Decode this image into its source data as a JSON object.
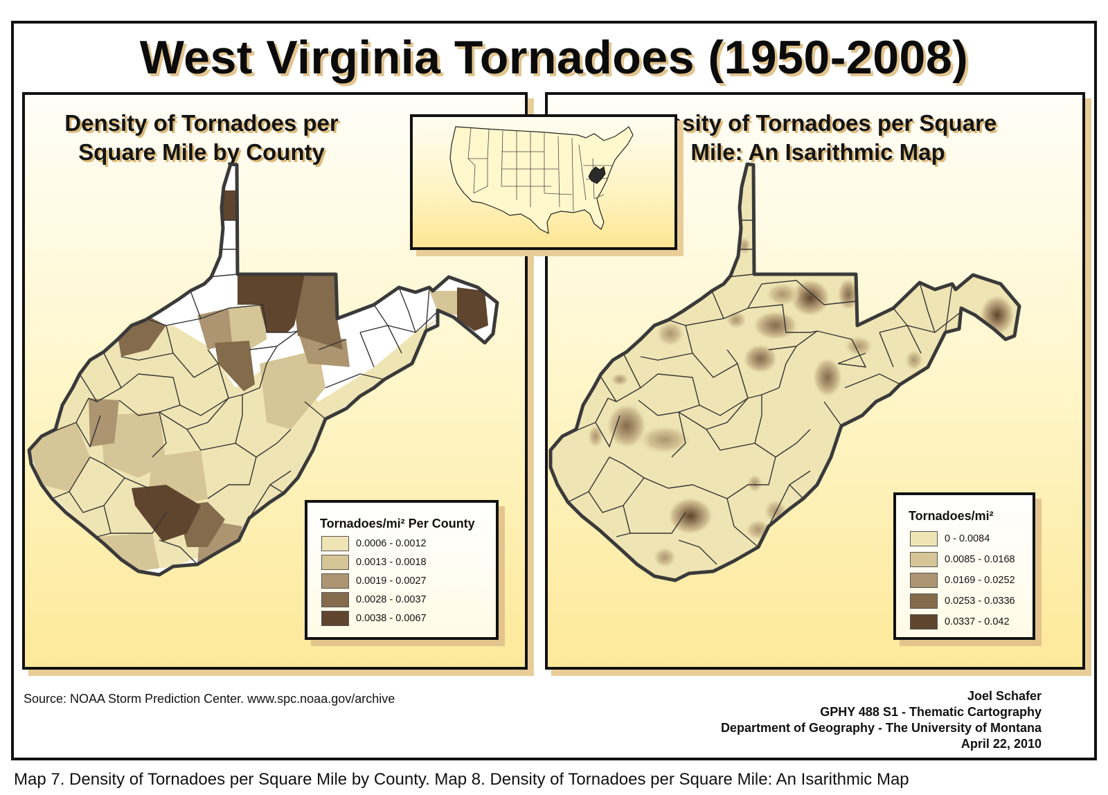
{
  "title": "West Virginia Tornadoes (1950-2008)",
  "left_map": {
    "title_line1": "Density of Tornadoes per",
    "title_line2": "Square Mile by County",
    "legend_title": "Tornadoes/mi² Per County",
    "classes": [
      {
        "label": "0.0006 - 0.0012",
        "color": "#efe5b4"
      },
      {
        "label": "0.0013 - 0.0018",
        "color": "#d6c596"
      },
      {
        "label": "0.0019 - 0.0027",
        "color": "#ad9571"
      },
      {
        "label": "0.0028 - 0.0037",
        "color": "#846b4c"
      },
      {
        "label": "0.0038 - 0.0067",
        "color": "#5f452e"
      }
    ]
  },
  "right_map": {
    "title_line1": "Density of Tornadoes per Square",
    "title_line2": "Mile:  An Isarithmic Map",
    "legend_title": "Tornadoes/mi²",
    "classes": [
      {
        "label": "0 - 0.0084",
        "color": "#efe5b4"
      },
      {
        "label": "0.0085 - 0.0168",
        "color": "#d6c596"
      },
      {
        "label": "0.0169 - 0.0252",
        "color": "#ad9571"
      },
      {
        "label": "0.0253 - 0.0336",
        "color": "#846b4c"
      },
      {
        "label": "0.0337 - 0.042",
        "color": "#5f452e"
      }
    ]
  },
  "source": "Source:  NOAA Storm Prediction Center.  www.spc.noaa.gov/archive",
  "credits": {
    "author": "Joel Schafer",
    "course": "GPHY 488 S1 - Thematic Cartography",
    "department": "Department of Geography - The University of Montana",
    "date": "April 22, 2010"
  },
  "caption": "Map 7.  Density of Tornadoes per Square Mile by County.  Map 8.  Density of Tornadoes per Square Mile: An Isarithmic Map"
}
